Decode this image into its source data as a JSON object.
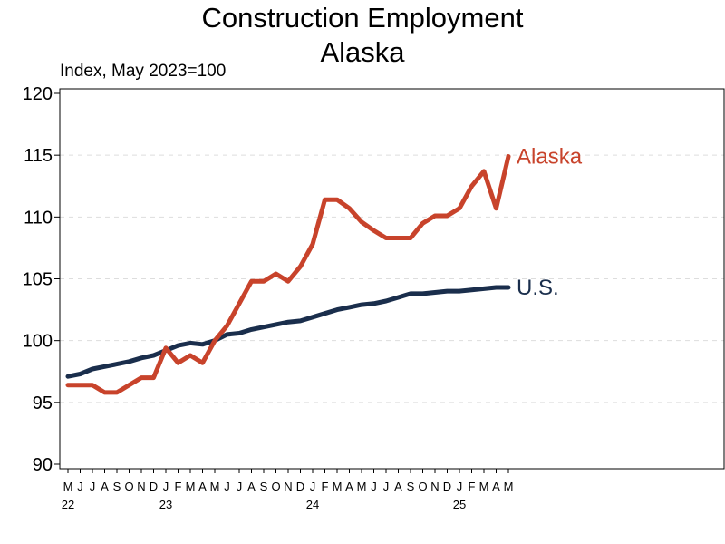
{
  "chart_data": {
    "type": "line",
    "title": "Construction Employment",
    "subtitle": "Alaska",
    "ylabel": "Index, May 2023=100",
    "ylim": [
      90,
      120
    ],
    "yticks": [
      90,
      95,
      100,
      105,
      110,
      115,
      120
    ],
    "grid": "horizontal dashed",
    "x_month_labels": [
      "M",
      "J",
      "J",
      "A",
      "S",
      "O",
      "N",
      "D",
      "J",
      "F",
      "M",
      "A",
      "M",
      "J",
      "J",
      "A",
      "S",
      "O",
      "N",
      "D",
      "J",
      "F",
      "M",
      "A",
      "M",
      "J",
      "J",
      "A",
      "S",
      "O",
      "N",
      "D",
      "J",
      "F",
      "M",
      "A",
      "M"
    ],
    "x_year_labels": [
      {
        "index": 0,
        "label": "22"
      },
      {
        "index": 8,
        "label": "23"
      },
      {
        "index": 20,
        "label": "24"
      },
      {
        "index": 32,
        "label": "25"
      }
    ],
    "series": [
      {
        "name": "Alaska",
        "color": "#c8432b",
        "values": [
          96.4,
          96.4,
          96.4,
          95.8,
          95.8,
          96.4,
          97.0,
          97.0,
          99.4,
          98.2,
          98.8,
          98.2,
          100.0,
          101.2,
          103.0,
          104.8,
          104.8,
          105.4,
          104.8,
          106.0,
          107.8,
          111.4,
          111.4,
          110.7,
          109.6,
          108.9,
          108.3,
          108.3,
          108.3,
          109.5,
          110.1,
          110.1,
          110.7,
          112.5,
          113.7,
          110.7,
          114.9
        ]
      },
      {
        "name": "U.S.",
        "color": "#1a2e4c",
        "values": [
          97.1,
          97.3,
          97.7,
          97.9,
          98.1,
          98.3,
          98.6,
          98.8,
          99.2,
          99.6,
          99.8,
          99.7,
          100.0,
          100.5,
          100.6,
          100.9,
          101.1,
          101.3,
          101.5,
          101.6,
          101.9,
          102.2,
          102.5,
          102.7,
          102.9,
          103.0,
          103.2,
          103.5,
          103.8,
          103.8,
          103.9,
          104.0,
          104.0,
          104.1,
          104.2,
          104.3,
          104.3
        ]
      }
    ]
  }
}
